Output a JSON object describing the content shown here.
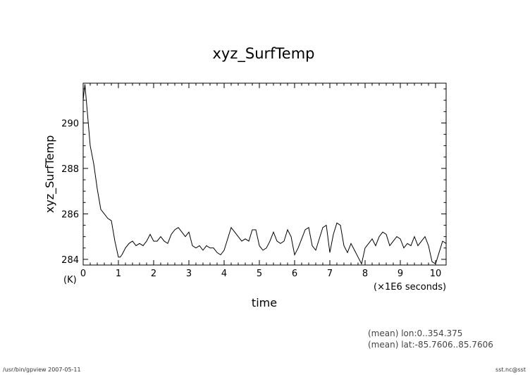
{
  "chart_data": {
    "type": "line",
    "title": "xyz_SurfTemp",
    "xlabel": "time",
    "ylabel": "xyz_SurfTemp",
    "x_unit": "(×1E6 seconds)",
    "y_unit": "(K)",
    "xlim": [
      0,
      10.3
    ],
    "ylim": [
      283.75,
      291.75
    ],
    "x_ticks": [
      0,
      1,
      2,
      3,
      4,
      5,
      6,
      7,
      8,
      9,
      10
    ],
    "y_ticks": [
      284,
      286,
      288,
      290
    ],
    "grid": false,
    "series": [
      {
        "x": [
          0,
          0.05,
          0.1,
          0.2,
          0.3,
          0.4,
          0.5,
          0.6,
          0.7,
          0.8,
          0.9,
          1.0,
          1.05,
          1.1,
          1.2,
          1.3,
          1.4,
          1.5,
          1.6,
          1.7,
          1.8,
          1.9,
          2.0,
          2.1,
          2.2,
          2.3,
          2.4,
          2.5,
          2.6,
          2.7,
          2.8,
          2.9,
          3.0,
          3.1,
          3.2,
          3.3,
          3.4,
          3.5,
          3.6,
          3.7,
          3.8,
          3.9,
          4.0,
          4.1,
          4.2,
          4.3,
          4.4,
          4.5,
          4.6,
          4.7,
          4.8,
          4.9,
          5.0,
          5.1,
          5.2,
          5.3,
          5.4,
          5.5,
          5.6,
          5.7,
          5.8,
          5.9,
          6.0,
          6.1,
          6.2,
          6.3,
          6.4,
          6.5,
          6.6,
          6.7,
          6.8,
          6.9,
          7.0,
          7.1,
          7.2,
          7.3,
          7.4,
          7.5,
          7.6,
          7.7,
          7.8,
          7.9,
          8.0,
          8.1,
          8.2,
          8.3,
          8.4,
          8.5,
          8.6,
          8.7,
          8.8,
          8.9,
          9.0,
          9.1,
          9.2,
          9.3,
          9.4,
          9.5,
          9.6,
          9.7,
          9.8,
          9.9,
          10.0,
          10.1,
          10.2,
          10.3
        ],
        "y": [
          291.0,
          291.7,
          290.8,
          289.0,
          288.2,
          287.1,
          286.2,
          286.0,
          285.8,
          285.7,
          284.8,
          284.1,
          284.1,
          284.2,
          284.5,
          284.7,
          284.8,
          284.6,
          284.7,
          284.6,
          284.8,
          285.1,
          284.8,
          284.8,
          285.0,
          284.8,
          284.7,
          285.1,
          285.3,
          285.4,
          285.2,
          285.0,
          285.2,
          284.6,
          284.5,
          284.6,
          284.4,
          284.6,
          284.5,
          284.5,
          284.3,
          284.2,
          284.4,
          284.9,
          285.4,
          285.2,
          285.0,
          284.8,
          284.9,
          284.8,
          285.3,
          285.3,
          284.6,
          284.4,
          284.5,
          284.8,
          285.2,
          284.8,
          284.7,
          284.8,
          285.3,
          285.0,
          284.2,
          284.5,
          284.9,
          285.3,
          285.4,
          284.6,
          284.4,
          284.9,
          285.4,
          285.5,
          284.3,
          285.1,
          285.6,
          285.5,
          284.6,
          284.3,
          284.7,
          284.4,
          284.1,
          283.8,
          284.5,
          284.7,
          284.9,
          284.6,
          285.0,
          285.2,
          285.1,
          284.6,
          284.8,
          285.0,
          284.9,
          284.5,
          284.7,
          284.6,
          285.0,
          284.6,
          284.8,
          285.0,
          284.6,
          283.9,
          283.8,
          284.3,
          284.8,
          284.7
        ]
      }
    ]
  },
  "annotations": {
    "mean_lon": "(mean) lon:0..354.375",
    "mean_lat": "(mean) lat:-85.7606..85.7606"
  },
  "footer": {
    "left": "/usr/bin/gpview  2007-05-11",
    "right": "sst.nc@sst"
  }
}
